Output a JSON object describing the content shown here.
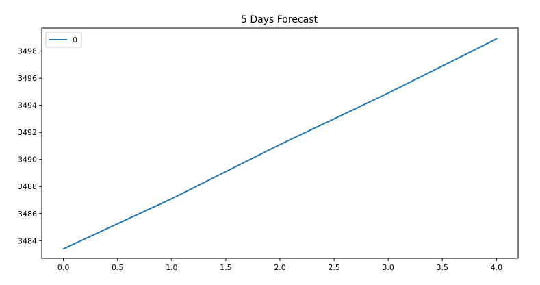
{
  "chart_data": {
    "type": "line",
    "title": "5 Days Forecast",
    "xlabel": "",
    "ylabel": "",
    "x": [
      0,
      1,
      2,
      3,
      4
    ],
    "series": [
      {
        "name": "0",
        "values": [
          3483.4,
          3487.1,
          3491.1,
          3494.9,
          3498.9
        ],
        "color": "#1f77b4"
      }
    ],
    "xlim": [
      -0.2,
      4.2
    ],
    "ylim": [
      3482.7,
      3499.7
    ],
    "x_ticks": [
      0.0,
      0.5,
      1.0,
      1.5,
      2.0,
      2.5,
      3.0,
      3.5,
      4.0
    ],
    "x_tick_labels": [
      "0.0",
      "0.5",
      "1.0",
      "1.5",
      "2.0",
      "2.5",
      "3.0",
      "3.5",
      "4.0"
    ],
    "y_ticks": [
      3484,
      3486,
      3488,
      3490,
      3492,
      3494,
      3496,
      3498
    ],
    "y_tick_labels": [
      "3484",
      "3486",
      "3488",
      "3490",
      "3492",
      "3494",
      "3496",
      "3498"
    ],
    "grid": false,
    "legend": "top-left"
  }
}
